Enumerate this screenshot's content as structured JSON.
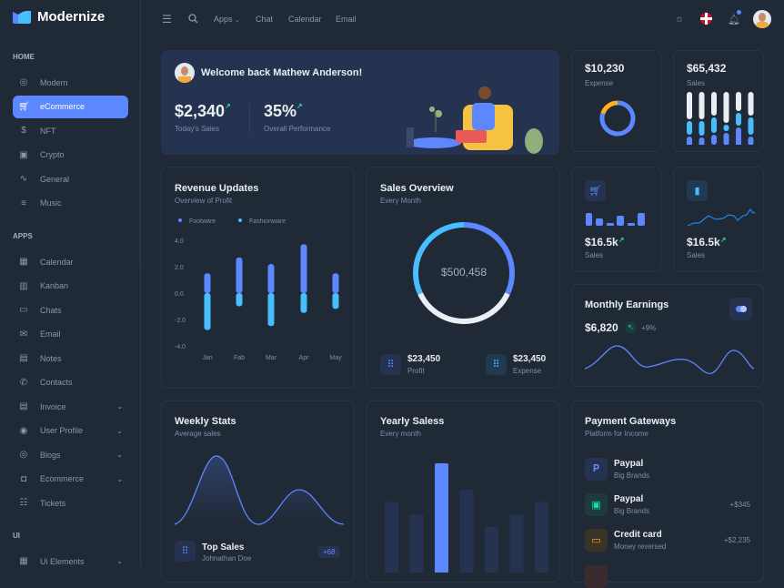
{
  "app": {
    "name": "Modernize"
  },
  "sidebar": {
    "sections": [
      {
        "label": "HOME",
        "items": [
          {
            "label": "Modern",
            "icon": "aperture-icon"
          },
          {
            "label": "eCommerce",
            "icon": "cart-icon",
            "active": true
          },
          {
            "label": "NFT",
            "icon": "dollar-icon"
          },
          {
            "label": "Crypto",
            "icon": "cpu-icon"
          },
          {
            "label": "General",
            "icon": "activity-icon"
          },
          {
            "label": "Music",
            "icon": "playlist-icon"
          }
        ]
      },
      {
        "label": "APPS",
        "items": [
          {
            "label": "Calendar",
            "icon": "calendar-icon"
          },
          {
            "label": "Kanban",
            "icon": "kanban-icon"
          },
          {
            "label": "Chats",
            "icon": "chat-icon"
          },
          {
            "label": "Email",
            "icon": "mail-icon"
          },
          {
            "label": "Notes",
            "icon": "notes-icon"
          },
          {
            "label": "Contacts",
            "icon": "phone-icon"
          },
          {
            "label": "Invoice",
            "icon": "file-icon",
            "expandable": true
          },
          {
            "label": "User Profile",
            "icon": "user-circle-icon",
            "expandable": true
          },
          {
            "label": "Blogs",
            "icon": "blog-icon",
            "expandable": true
          },
          {
            "label": "Ecommerce",
            "icon": "basket-icon",
            "expandable": true
          },
          {
            "label": "Tickets",
            "icon": "tickets-icon"
          }
        ]
      },
      {
        "label": "UI",
        "items": [
          {
            "label": "Ui Elements",
            "icon": "grid-icon",
            "expandable": true
          }
        ]
      }
    ]
  },
  "topbar": {
    "links": [
      "Apps",
      "Chat",
      "Calendar",
      "Email"
    ]
  },
  "welcome": {
    "title": "Welcome back Mathew Anderson!",
    "sales_value": "$2,340",
    "sales_label": "Today's Sales",
    "perf_value": "35%",
    "perf_label": "Overall Performance"
  },
  "expense": {
    "value": "$10,230",
    "label": "Expense",
    "donut": [
      0.8,
      0.2
    ],
    "colors": [
      "#5d87ff",
      "#ffae1f"
    ]
  },
  "sales_card": {
    "value": "$65,432",
    "label": "Sales"
  },
  "sales_small_1": {
    "value": "$16.5k",
    "label": "Sales"
  },
  "sales_small_2": {
    "value": "$16.5k",
    "label": "Sales"
  },
  "monthly": {
    "title": "Monthly Earnings",
    "value": "$6,820",
    "change": "+9%"
  },
  "revenue": {
    "title": "Revenue Updates",
    "subtitle": "Overview of Profit"
  },
  "sales_overview": {
    "title": "Sales Overview",
    "subtitle": "Every Month",
    "center": "$500,458",
    "profit_value": "$23,450",
    "profit_label": "Profit",
    "expense_value": "$23,450",
    "expense_label": "Expense",
    "segments": [
      0.32,
      0.36,
      0.32
    ],
    "segment_colors": [
      "#5d87ff",
      "#eaeff4",
      "#49beff"
    ]
  },
  "weekly": {
    "title": "Weekly Stats",
    "subtitle": "Average sales",
    "top_title": "Top Sales",
    "top_name": "Johnathan Doe",
    "top_badge": "+68"
  },
  "yearly": {
    "title": "Yearly Saless",
    "subtitle": "Every month",
    "values": [
      66,
      55,
      100,
      77,
      44,
      55,
      66
    ],
    "highlight": 2
  },
  "payments": {
    "title": "Payment Gateways",
    "subtitle": "Platform for Income",
    "items": [
      {
        "name": "Paypal",
        "desc": "Big Brands",
        "amount": "",
        "icon": "paypal-icon",
        "bg": "#253350",
        "fg": "#5d87ff"
      },
      {
        "name": "Paypal",
        "desc": "Big Brands",
        "amount": "+$345",
        "icon": "wallet-icon",
        "bg": "#1b3c3a",
        "fg": "#13deb9"
      },
      {
        "name": "Credit card",
        "desc": "Money reversed",
        "amount": "+$2,235",
        "icon": "credit-card-icon",
        "bg": "#3a3427",
        "fg": "#ffae1f"
      }
    ]
  },
  "chart_data": [
    {
      "type": "bar",
      "title": "Revenue Updates",
      "categories": [
        "Jan",
        "Fab",
        "Mar",
        "Apr",
        "May"
      ],
      "series": [
        {
          "name": "Footware",
          "values": [
            1.5,
            2.7,
            2.2,
            3.7,
            1.5
          ]
        },
        {
          "name": "Fashionware",
          "values": [
            -2.8,
            -1.0,
            -2.5,
            -1.5,
            -1.2
          ]
        }
      ],
      "yticks": [
        "4.0",
        "2.0",
        "0.0",
        "-2.0",
        "-4.0"
      ],
      "ylim": [
        -4,
        4
      ],
      "legend": "top-left",
      "colors": [
        "#5d87ff",
        "#49beff"
      ]
    }
  ]
}
